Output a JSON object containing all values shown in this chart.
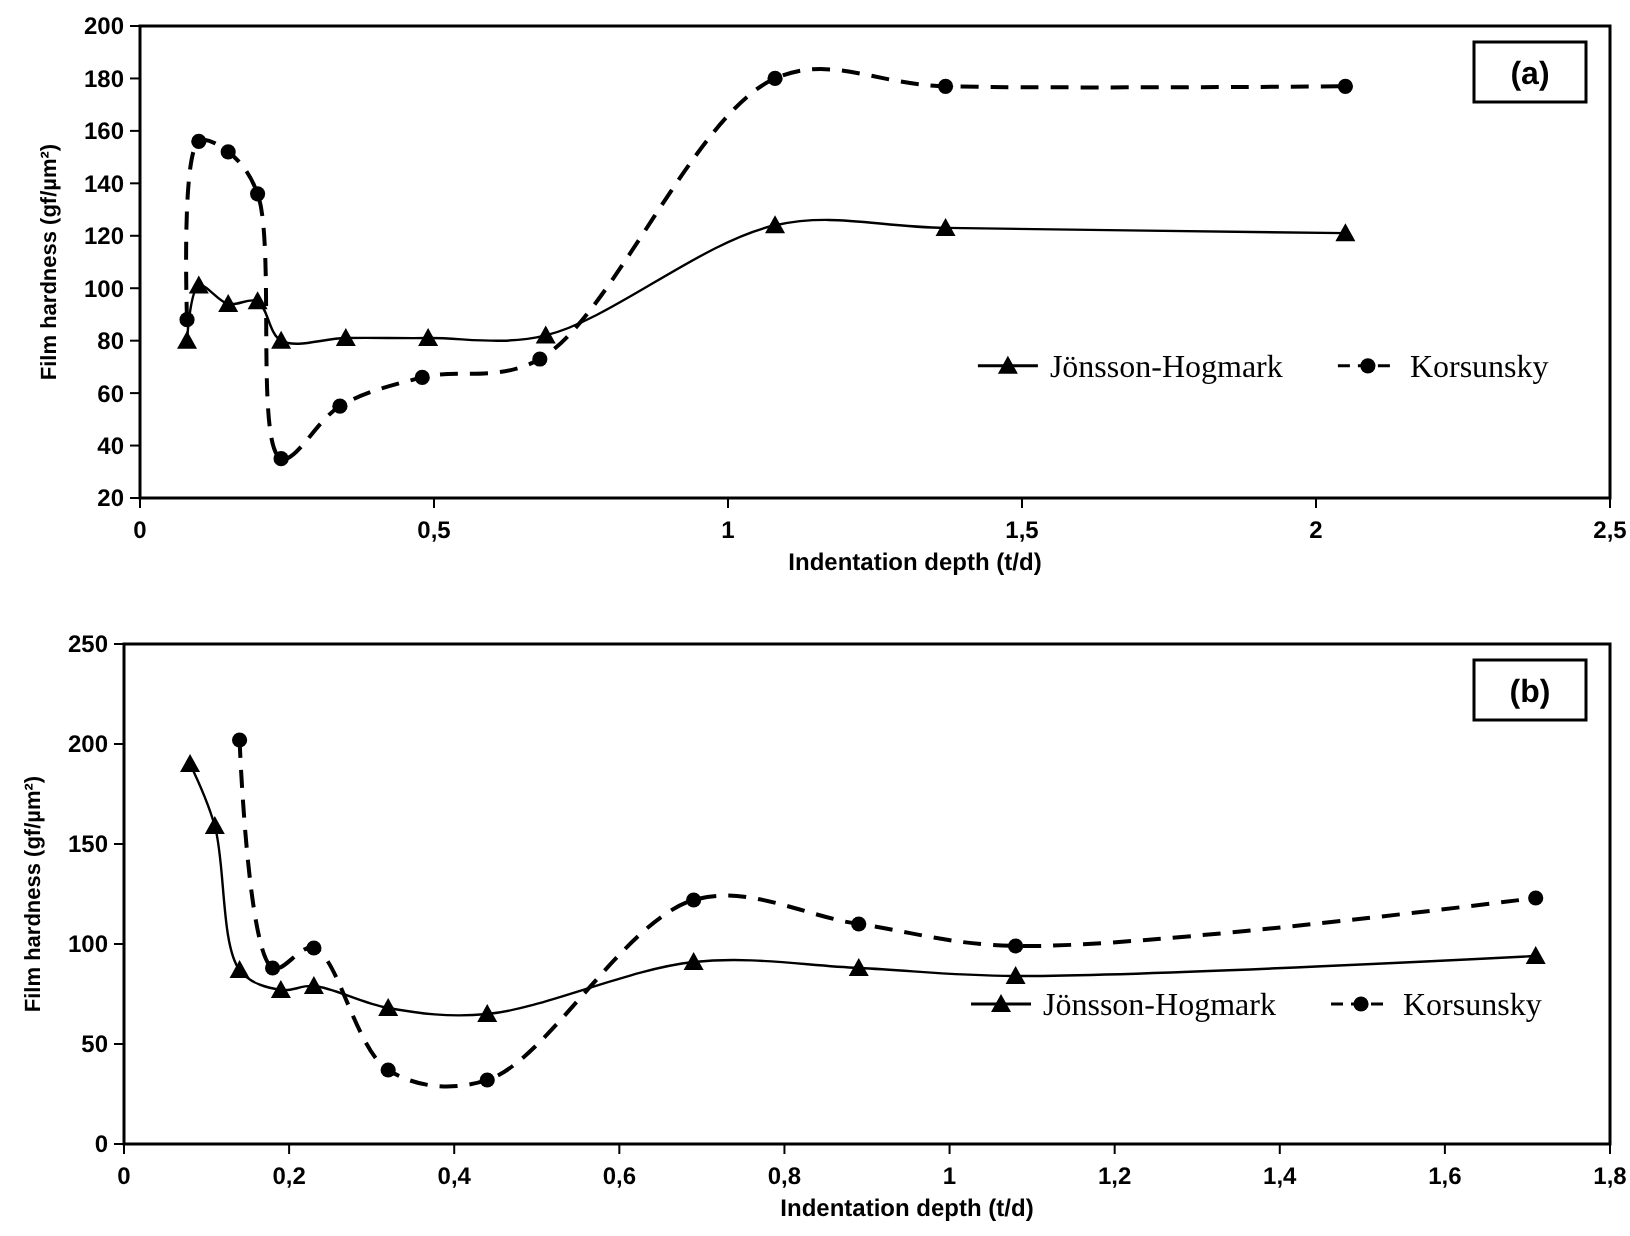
{
  "chart_data": [
    {
      "type": "line",
      "xlabel": "Indentation depth (t/d)",
      "ylabel": "Film hardness (gf/µm²)",
      "annotations": [
        "(a)"
      ],
      "xlim": [
        0,
        2.5
      ],
      "xticks": [
        0,
        {
          "value": 0.5,
          "label": "0,5"
        },
        1,
        {
          "value": 1.5,
          "label": "1,5"
        },
        2,
        {
          "value": 2.5,
          "label": "2,5"
        }
      ],
      "ylim": [
        20,
        200
      ],
      "yticks": [
        20,
        40,
        60,
        80,
        100,
        120,
        140,
        160,
        180,
        200
      ],
      "grid": false,
      "legend": "right",
      "series": [
        {
          "name": "Jönsson-Hogmark",
          "color": "#000000",
          "marker": "triangle",
          "line_style": "solid",
          "x": [
            0.08,
            0.1,
            0.15,
            0.2,
            0.24,
            0.35,
            0.49,
            0.69,
            1.08,
            1.37,
            2.05
          ],
          "values": [
            80,
            101,
            94,
            95,
            80,
            81,
            81,
            82,
            124,
            123,
            121
          ]
        },
        {
          "name": "Korsunsky",
          "color": "#000000",
          "marker": "circle",
          "line_style": "dashed",
          "x": [
            0.08,
            0.1,
            0.15,
            0.2,
            0.24,
            0.34,
            0.48,
            0.68,
            1.08,
            1.37,
            2.05
          ],
          "values": [
            88,
            156,
            152,
            136,
            35,
            55,
            66,
            73,
            180,
            177,
            177
          ]
        }
      ]
    },
    {
      "type": "line",
      "xlabel": "Indentation depth (t/d)",
      "ylabel": "Film hardness (gf/µm²)",
      "annotations": [
        "(b)"
      ],
      "xlim": [
        0,
        1.8
      ],
      "xticks": [
        0,
        {
          "value": 0.2,
          "label": "0,2"
        },
        {
          "value": 0.4,
          "label": "0,4"
        },
        {
          "value": 0.6,
          "label": "0,6"
        },
        {
          "value": 0.8,
          "label": "0,8"
        },
        1,
        {
          "value": 1.2,
          "label": "1,2"
        },
        {
          "value": 1.4,
          "label": "1,4"
        },
        {
          "value": 1.6,
          "label": "1,6"
        },
        {
          "value": 1.8,
          "label": "1,8"
        }
      ],
      "ylim": [
        0,
        250
      ],
      "yticks": [
        0,
        50,
        100,
        150,
        200,
        250
      ],
      "grid": false,
      "legend": "right",
      "series": [
        {
          "name": "Jönsson-Hogmark",
          "color": "#000000",
          "marker": "triangle",
          "line_style": "solid",
          "x": [
            0.08,
            0.11,
            0.14,
            0.19,
            0.23,
            0.32,
            0.44,
            0.69,
            0.89,
            1.08,
            1.71
          ],
          "values": [
            190,
            159,
            87,
            77,
            79,
            68,
            65,
            91,
            88,
            84,
            94
          ]
        },
        {
          "name": "Korsunsky",
          "color": "#000000",
          "marker": "circle",
          "line_style": "dashed",
          "x": [
            0.14,
            0.18,
            0.23,
            0.32,
            0.44,
            0.69,
            0.89,
            1.08,
            1.71
          ],
          "values": [
            202,
            88,
            98,
            37,
            32,
            122,
            110,
            99,
            123
          ]
        }
      ]
    }
  ]
}
